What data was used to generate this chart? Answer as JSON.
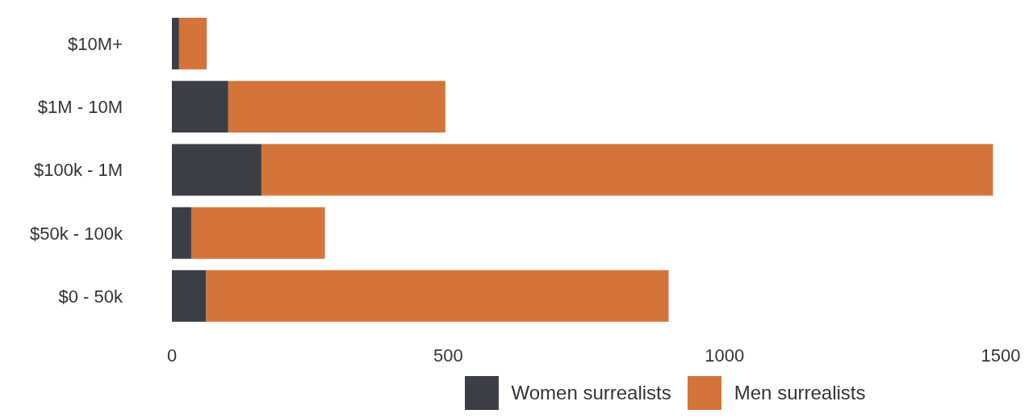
{
  "chart_data": {
    "type": "bar",
    "orientation": "horizontal",
    "stacked": true,
    "categories": [
      "$10M+",
      "$1M - 10M",
      "$100k - 1M",
      "$50k - 100k",
      "$0 - 50k"
    ],
    "series": [
      {
        "name": "Women surrealists",
        "color": "#3b3f45",
        "values": [
          13,
          102,
          162,
          35,
          62
        ]
      },
      {
        "name": "Men surrealists",
        "color": "#d4743b",
        "values": [
          50,
          393,
          1324,
          242,
          837
        ]
      }
    ],
    "xlim": [
      0,
      1500
    ],
    "xticks": [
      0,
      500,
      1000,
      1500
    ],
    "legend": "bottom"
  }
}
